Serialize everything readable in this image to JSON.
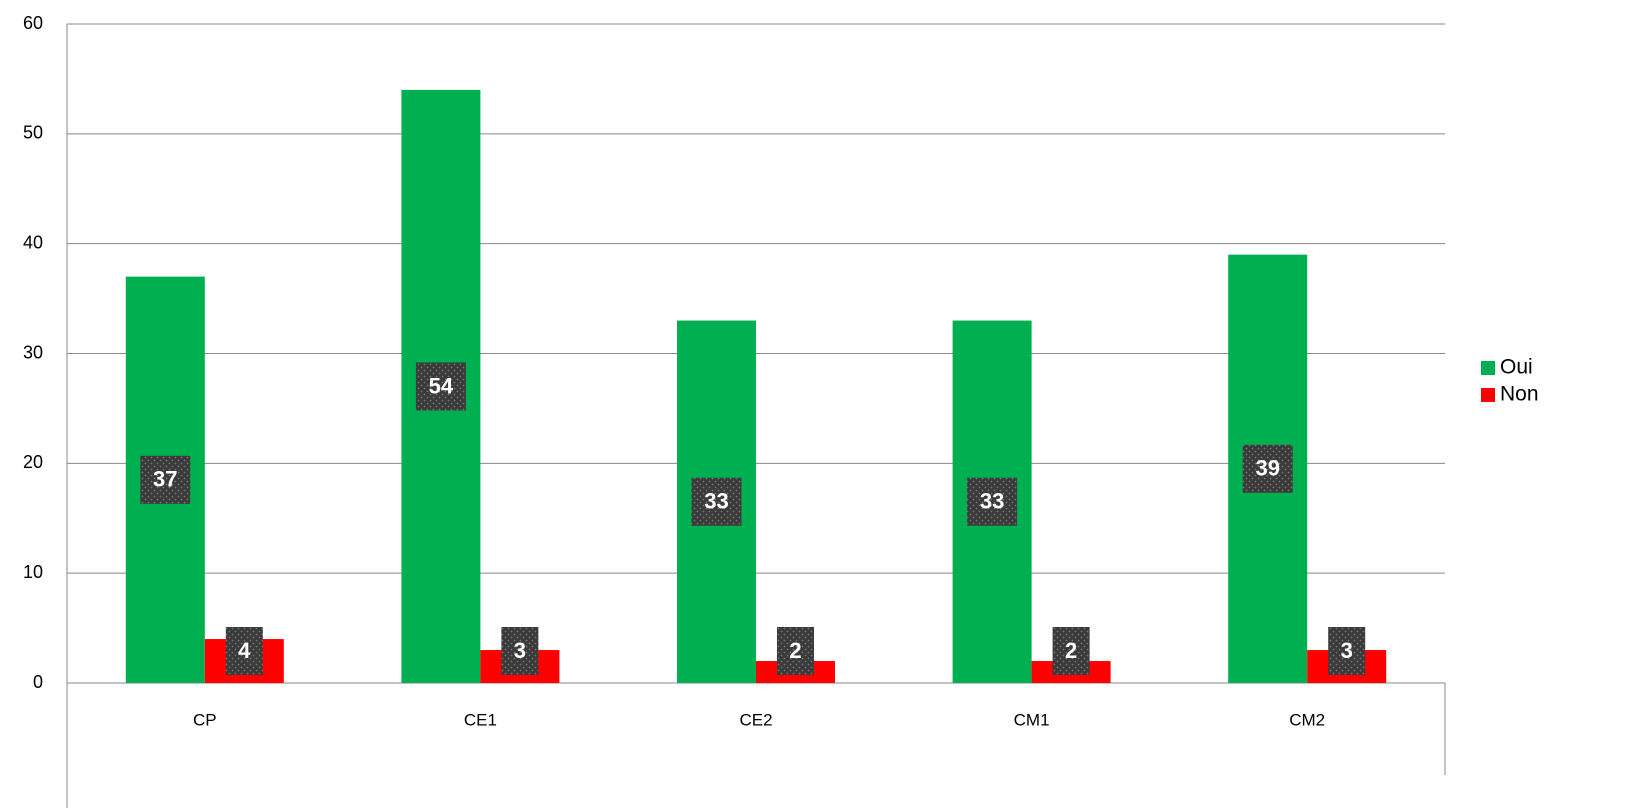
{
  "chart_data": {
    "type": "bar",
    "categories": [
      "CP",
      "CE1",
      "CE2",
      "CM1",
      "CM2"
    ],
    "series": [
      {
        "name": "Oui",
        "color": "#00b050",
        "values": [
          37,
          54,
          33,
          33,
          39
        ]
      },
      {
        "name": "Non",
        "color": "#ff0000",
        "values": [
          4,
          3,
          2,
          2,
          3
        ]
      }
    ],
    "ylim": [
      0,
      60
    ],
    "yticks": [
      0,
      10,
      20,
      30,
      40,
      50,
      60
    ],
    "grid": true,
    "legend": "right"
  }
}
